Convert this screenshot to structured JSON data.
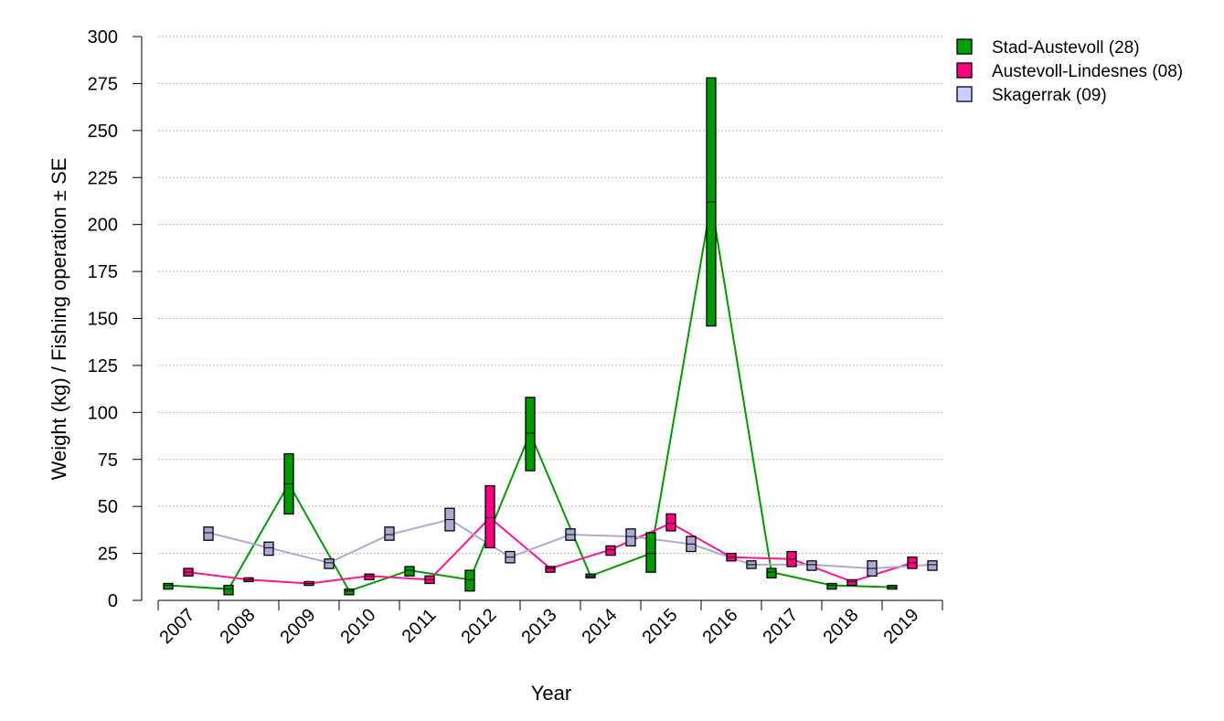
{
  "chart_data": {
    "type": "line",
    "title": "",
    "xlabel": "Year",
    "ylabel": "Weight (kg) / Fishing operation ± SE",
    "ylim": [
      0,
      300
    ],
    "yticks": [
      0,
      25,
      50,
      75,
      100,
      125,
      150,
      175,
      200,
      225,
      250,
      275,
      300
    ],
    "grid": true,
    "legend_position": "top-right",
    "categories": [
      "2007",
      "2008",
      "2009",
      "2010",
      "2011",
      "2012",
      "2013",
      "2014",
      "2015",
      "2016",
      "2017",
      "2018",
      "2019"
    ],
    "series": [
      {
        "name": "Stad-Austevoll (28)",
        "color": "#00A000",
        "line_color": "#009900",
        "values": [
          8,
          6,
          62,
          5,
          16,
          11,
          89,
          13,
          25,
          212,
          15,
          8,
          7
        ],
        "se_low": [
          6,
          3,
          46,
          3,
          13,
          5,
          69,
          12,
          15,
          146,
          12,
          6,
          6
        ],
        "se_high": [
          9,
          8,
          78,
          6,
          18,
          16,
          108,
          14,
          36,
          278,
          17,
          9,
          8
        ]
      },
      {
        "name": "Austevoll-Lindesnes (08)",
        "color": "#FF0080",
        "line_color": "#FF1493",
        "values": [
          15,
          11,
          9,
          13,
          11,
          44,
          17,
          27,
          41,
          23,
          22,
          10,
          20
        ],
        "se_low": [
          13,
          10,
          8,
          11,
          9,
          28,
          15,
          24,
          37,
          21,
          18,
          8,
          17
        ],
        "se_high": [
          17,
          12,
          10,
          14,
          13,
          61,
          18,
          29,
          46,
          25,
          26,
          11,
          23
        ]
      },
      {
        "name": "Skagerrak (09)",
        "color": "#CCCCFF",
        "line_color": "#AAAAD4",
        "values": [
          36,
          28,
          20,
          35,
          43,
          23,
          35,
          34,
          30,
          19,
          19,
          17,
          19
        ],
        "se_low": [
          32,
          24,
          17,
          32,
          37,
          20,
          32,
          29,
          26,
          17,
          16,
          13,
          16
        ],
        "se_high": [
          39,
          31,
          22,
          39,
          49,
          26,
          38,
          38,
          34,
          21,
          21,
          21,
          21
        ]
      }
    ]
  }
}
